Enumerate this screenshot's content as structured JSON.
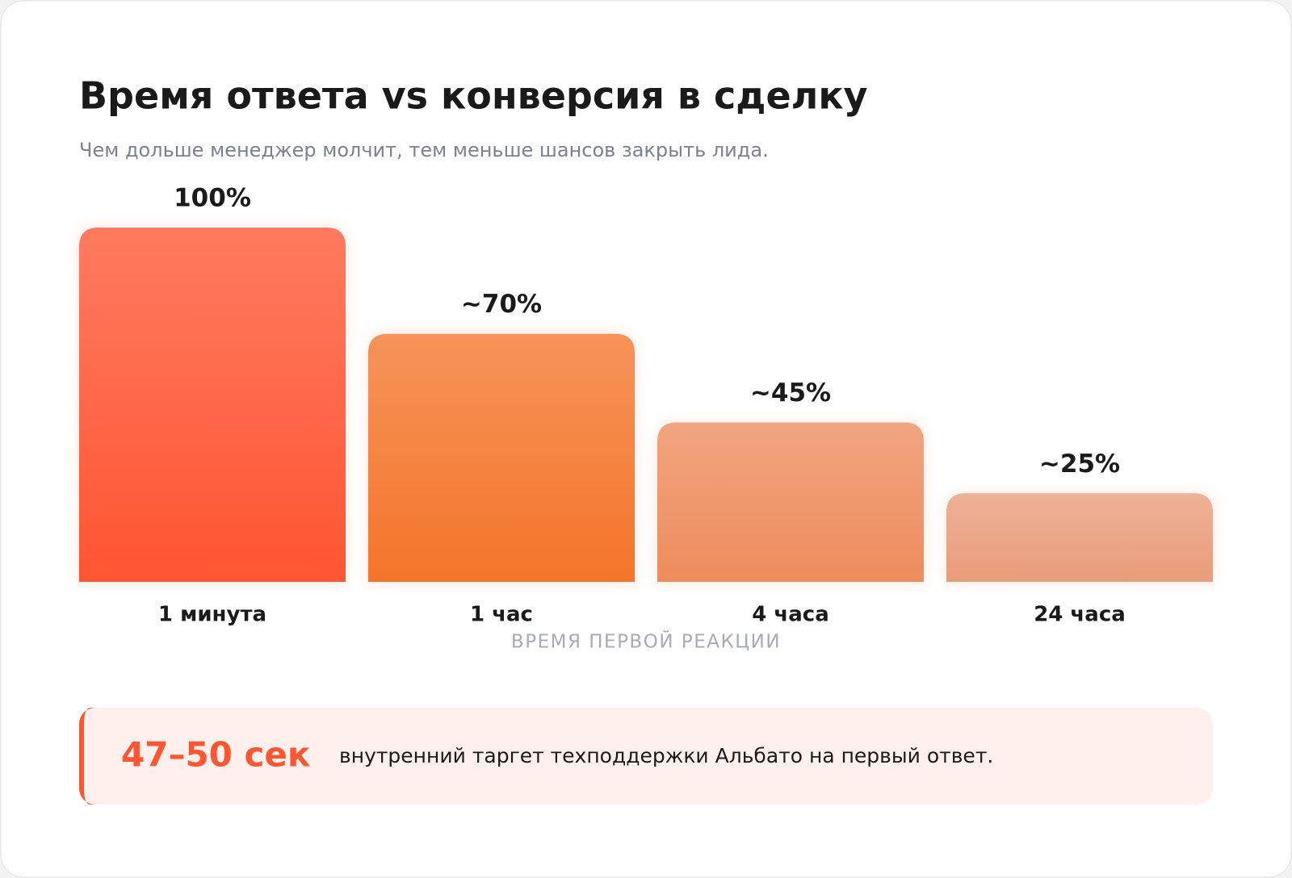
{
  "chart_data": {
    "type": "bar",
    "title": "Время ответа vs конверсия в сделку",
    "subtitle": "Чем дольше менеджер молчит, тем меньше шансов закрыть лида.",
    "x_label": "ВРЕМЯ ПЕРВОЙ РЕАКЦИИ",
    "categories": [
      "1 минута",
      "1 час",
      "4 часа",
      "24 часа"
    ],
    "values": [
      100,
      70,
      45,
      25
    ],
    "value_labels": [
      "100%",
      "~70%",
      "~45%",
      "~25%"
    ],
    "colors": [
      "#ff5530",
      "#f4742a",
      "#ee8c5c",
      "#e99c7a"
    ],
    "ylim": [
      0,
      100
    ]
  },
  "callout": {
    "highlight": "47–50 сек",
    "text": "внутренний таргет техподдержки Альбато на первый ответ."
  }
}
